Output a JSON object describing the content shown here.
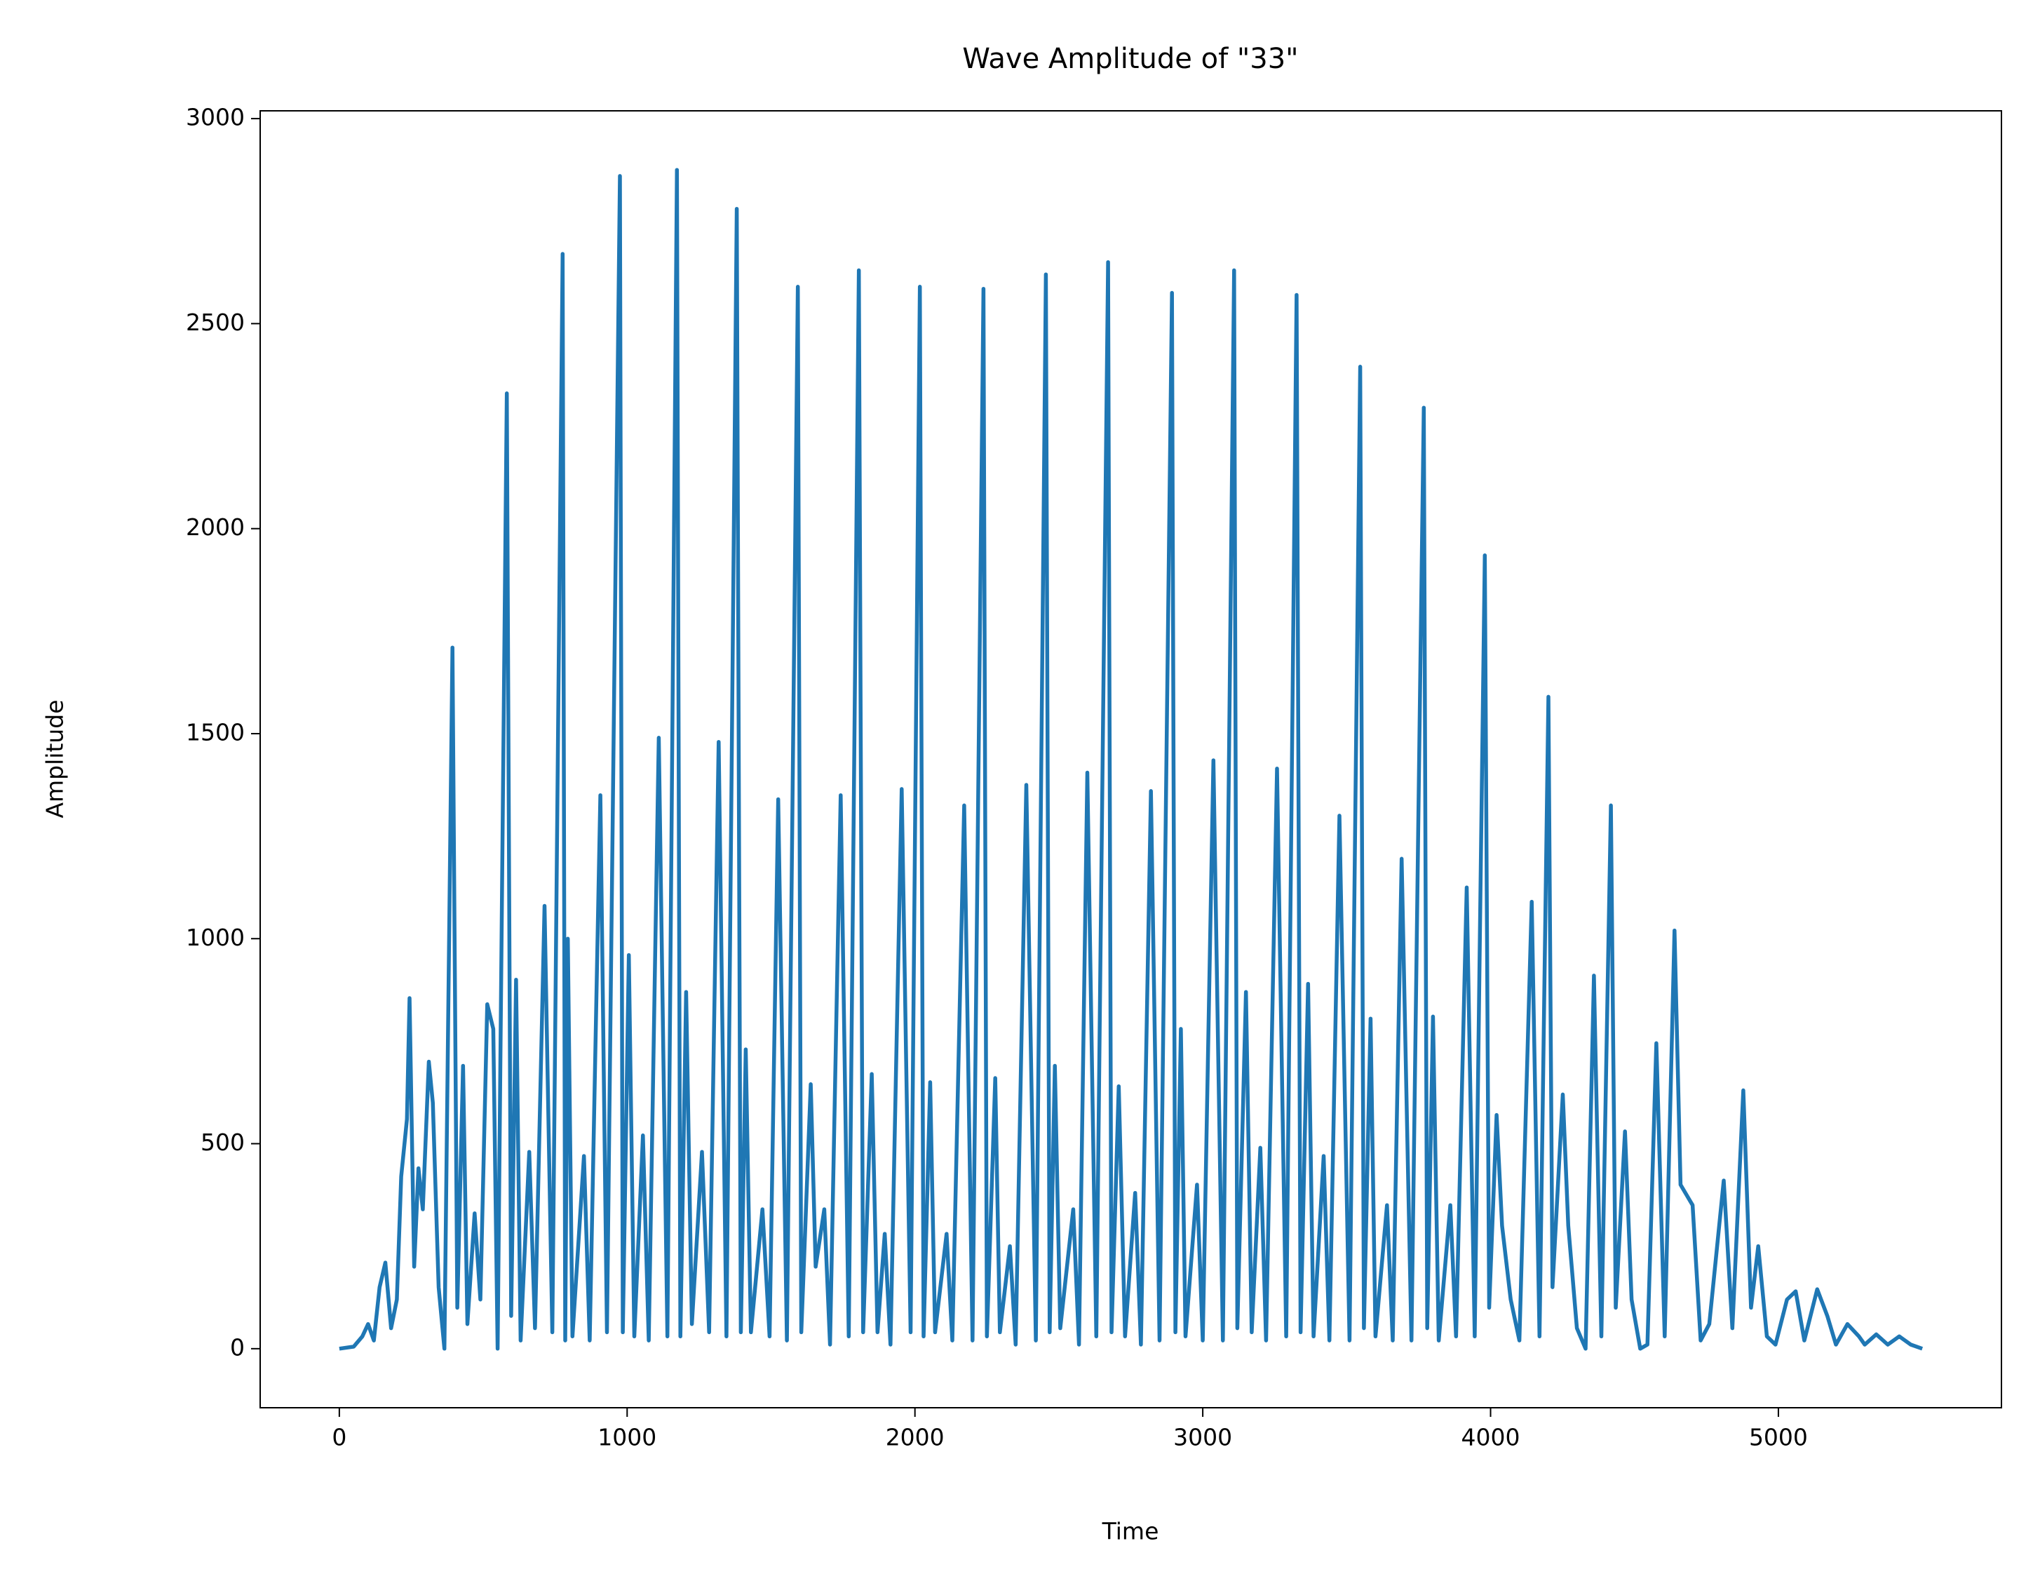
{
  "chart_data": {
    "type": "line",
    "title": "Wave Amplitude of \"33\"",
    "x_label": "Time",
    "y_label": "Amplitude",
    "xlim": [
      -275,
      5775
    ],
    "ylim": [
      -144,
      3019
    ],
    "xticks": [
      0,
      1000,
      2000,
      3000,
      4000,
      5000
    ],
    "yticks": [
      0,
      500,
      1000,
      1500,
      2000,
      2500,
      3000
    ],
    "series": [
      {
        "color": "#1f77b4",
        "x": [
          0,
          50,
          80,
          100,
          120,
          140,
          160,
          180,
          200,
          215,
          235,
          244,
          260,
          275,
          290,
          311,
          325,
          345,
          365,
          393,
          410,
          430,
          445,
          470,
          490,
          514,
          535,
          550,
          582,
          597,
          614,
          630,
          660,
          680,
          713,
          740,
          776,
          785,
          794,
          810,
          850,
          870,
          907,
          930,
          975,
          985,
          1006,
          1025,
          1055,
          1075,
          1110,
          1140,
          1173,
          1185,
          1205,
          1225,
          1260,
          1285,
          1318,
          1345,
          1381,
          1395,
          1412,
          1430,
          1470,
          1495,
          1525,
          1555,
          1593,
          1605,
          1638,
          1655,
          1685,
          1705,
          1742,
          1770,
          1805,
          1820,
          1850,
          1870,
          1895,
          1915,
          1954,
          1985,
          2017,
          2030,
          2053,
          2070,
          2110,
          2130,
          2171,
          2200,
          2238,
          2250,
          2279,
          2295,
          2330,
          2350,
          2387,
          2420,
          2455,
          2468,
          2486,
          2505,
          2550,
          2570,
          2599,
          2630,
          2671,
          2683,
          2708,
          2730,
          2765,
          2785,
          2820,
          2850,
          2893,
          2905,
          2924,
          2940,
          2980,
          3000,
          3037,
          3070,
          3109,
          3120,
          3150,
          3170,
          3200,
          3220,
          3258,
          3290,
          3326,
          3340,
          3366,
          3385,
          3420,
          3440,
          3475,
          3510,
          3547,
          3560,
          3583,
          3600,
          3640,
          3660,
          3691,
          3725,
          3768,
          3780,
          3800,
          3820,
          3860,
          3880,
          3917,
          3945,
          3980,
          3995,
          4021,
          4040,
          4070,
          4100,
          4143,
          4170,
          4201,
          4215,
          4251,
          4270,
          4300,
          4330,
          4359,
          4385,
          4418,
          4435,
          4467,
          4490,
          4520,
          4545,
          4576,
          4605,
          4639,
          4660,
          4702,
          4730,
          4760,
          4810,
          4840,
          4878,
          4905,
          4930,
          4960,
          4990,
          5030,
          5060,
          5090,
          5135,
          5170,
          5200,
          5240,
          5280,
          5300,
          5340,
          5380,
          5420,
          5460,
          5500
        ],
        "values": [
          0,
          5,
          30,
          60,
          20,
          150,
          210,
          50,
          120,
          420,
          560,
          855,
          200,
          440,
          340,
          700,
          600,
          150,
          0,
          1710,
          100,
          690,
          60,
          330,
          120,
          840,
          780,
          0,
          2330,
          80,
          900,
          20,
          480,
          50,
          1080,
          40,
          2670,
          20,
          1000,
          30,
          470,
          20,
          1350,
          40,
          2860,
          40,
          960,
          30,
          520,
          20,
          1490,
          30,
          2875,
          30,
          870,
          60,
          480,
          40,
          1480,
          30,
          2780,
          40,
          730,
          40,
          340,
          30,
          1340,
          20,
          2590,
          40,
          645,
          200,
          340,
          10,
          1350,
          30,
          2630,
          40,
          670,
          40,
          280,
          10,
          1365,
          40,
          2590,
          30,
          650,
          40,
          280,
          20,
          1325,
          20,
          2585,
          30,
          660,
          40,
          250,
          10,
          1375,
          20,
          2620,
          40,
          690,
          50,
          340,
          10,
          1405,
          30,
          2650,
          40,
          640,
          30,
          380,
          10,
          1360,
          20,
          2575,
          40,
          780,
          30,
          400,
          20,
          1435,
          20,
          2630,
          50,
          870,
          40,
          490,
          20,
          1415,
          30,
          2570,
          40,
          890,
          30,
          470,
          20,
          1300,
          20,
          2395,
          50,
          805,
          30,
          350,
          20,
          1195,
          20,
          2295,
          50,
          810,
          20,
          350,
          30,
          1125,
          30,
          1935,
          100,
          570,
          300,
          120,
          20,
          1090,
          30,
          1590,
          150,
          620,
          300,
          50,
          0,
          910,
          30,
          1325,
          100,
          530,
          120,
          0,
          10,
          745,
          30,
          1020,
          400,
          350,
          20,
          60,
          410,
          50,
          630,
          100,
          250,
          30,
          10,
          120,
          140,
          20,
          145,
          80,
          10,
          60,
          30,
          10,
          35,
          10,
          30,
          10,
          0
        ]
      }
    ]
  }
}
